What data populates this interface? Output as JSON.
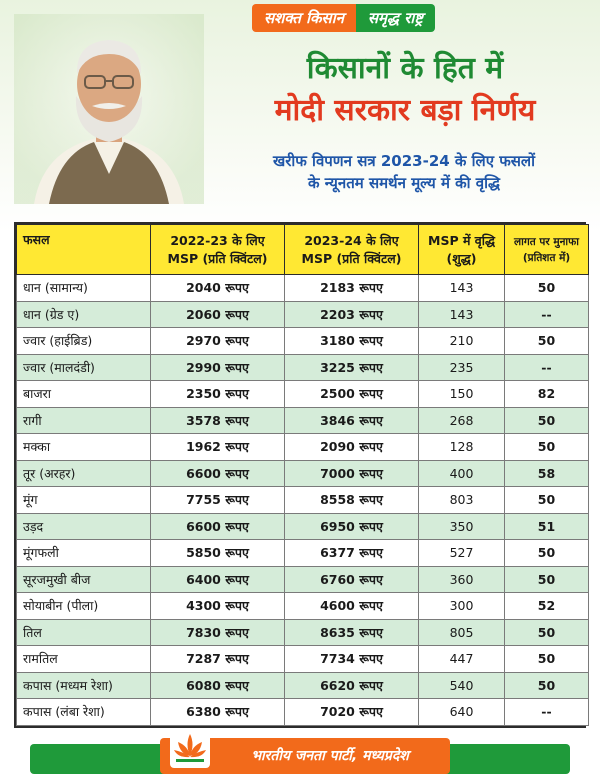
{
  "ribbon": {
    "left": "सशक्त किसान",
    "right": "समृद्ध राष्ट्र"
  },
  "headline": {
    "line1": "किसानों के हित में",
    "line2": "मोदी सरकार बड़ा निर्णय"
  },
  "subheadline": {
    "line1": "खरीफ विपणन सत्र 2023-24 के लिए फसलों",
    "line2": "के न्यूनतम समर्थन मूल्य में की वृद्धि"
  },
  "table": {
    "headers": {
      "crop": "फसल",
      "msp_2022_line1": "2022-23 के लिए",
      "msp_2022_line2": "MSP (प्रति क्विंटल)",
      "msp_2023_line1": "2023-24 के लिए",
      "msp_2023_line2": "MSP (प्रति क्विंटल)",
      "increase_line1": "MSP में वृद्धि",
      "increase_line2": "(शुद्ध)",
      "profit_line1": "लागत पर मुनाफा",
      "profit_line2": "(प्रतिशत में)"
    },
    "rows": [
      {
        "crop": "धान (सामान्य)",
        "msp2022": "2040 रूपए",
        "msp2023": "2183 रूपए",
        "increase": "143",
        "profit": "50"
      },
      {
        "crop": "धान (ग्रेड ए)",
        "msp2022": "2060 रूपए",
        "msp2023": "2203 रूपए",
        "increase": "143",
        "profit": "--"
      },
      {
        "crop": "ज्वार (हाईब्रिड)",
        "msp2022": "2970 रूपए",
        "msp2023": "3180 रूपए",
        "increase": "210",
        "profit": "50"
      },
      {
        "crop": "ज्वार (मालदंडी)",
        "msp2022": "2990 रूपए",
        "msp2023": "3225 रूपए",
        "increase": "235",
        "profit": "--"
      },
      {
        "crop": "बाजरा",
        "msp2022": "2350 रूपए",
        "msp2023": "2500 रूपए",
        "increase": "150",
        "profit": "82"
      },
      {
        "crop": "रागी",
        "msp2022": "3578 रूपए",
        "msp2023": "3846 रूपए",
        "increase": "268",
        "profit": "50"
      },
      {
        "crop": "मक्का",
        "msp2022": "1962 रूपए",
        "msp2023": "2090 रूपए",
        "increase": "128",
        "profit": "50"
      },
      {
        "crop": "तूर (अरहर)",
        "msp2022": "6600 रूपए",
        "msp2023": "7000 रूपए",
        "increase": "400",
        "profit": "58"
      },
      {
        "crop": "मूंग",
        "msp2022": "7755 रूपए",
        "msp2023": "8558 रूपए",
        "increase": "803",
        "profit": "50"
      },
      {
        "crop": "उड़द",
        "msp2022": "6600 रूपए",
        "msp2023": "6950 रूपए",
        "increase": "350",
        "profit": "51"
      },
      {
        "crop": "मूंगफली",
        "msp2022": "5850 रूपए",
        "msp2023": "6377 रूपए",
        "increase": "527",
        "profit": "50"
      },
      {
        "crop": "सूरजमुखी बीज",
        "msp2022": "6400 रूपए",
        "msp2023": "6760 रूपए",
        "increase": "360",
        "profit": "50"
      },
      {
        "crop": "सोयाबीन (पीला)",
        "msp2022": "4300 रूपए",
        "msp2023": "4600 रूपए",
        "increase": "300",
        "profit": "52"
      },
      {
        "crop": "तिल",
        "msp2022": "7830 रूपए",
        "msp2023": "8635 रूपए",
        "increase": "805",
        "profit": "50"
      },
      {
        "crop": "रामतिल",
        "msp2022": "7287 रूपए",
        "msp2023": "7734 रूपए",
        "increase": "447",
        "profit": "50"
      },
      {
        "crop": "कपास (मध्यम रेशा)",
        "msp2022": "6080 रूपए",
        "msp2023": "6620 रूपए",
        "increase": "540",
        "profit": "50"
      },
      {
        "crop": "कपास (लंबा रेशा)",
        "msp2022": "6380 रूपए",
        "msp2023": "7020 रूपए",
        "increase": "640",
        "profit": "--"
      }
    ]
  },
  "footer": {
    "org": "भारतीय जनता पार्टी, मध्यप्रदेश"
  },
  "icons": {
    "portrait": "portrait-photo",
    "logo": "lotus-logo-icon"
  },
  "colors": {
    "green": "#1f9a3a",
    "saffron": "#f26a1b",
    "red": "#e23a1f",
    "blue": "#1f56a8",
    "header_yellow": "#ffe833",
    "row_green": "#d5ecd9"
  }
}
